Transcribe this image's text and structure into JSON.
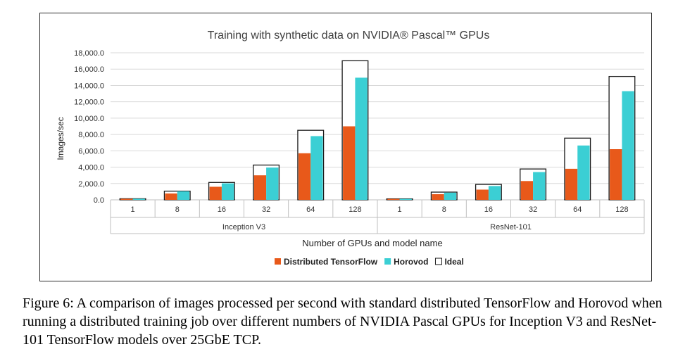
{
  "chart_data": {
    "type": "bar",
    "title": "Training with synthetic data on NVIDIA® Pascal™ GPUs",
    "xlabel": "Number of GPUs and model name",
    "ylabel": "Images/sec",
    "ylim": [
      0,
      18000
    ],
    "yticks": [
      "0.0",
      "2,000.0",
      "4,000.0",
      "6,000.0",
      "8,000.0",
      "10,000.0",
      "12,000.0",
      "14,000.0",
      "16,000.0",
      "18,000.0"
    ],
    "grid": true,
    "legend_position": "bottom",
    "groups": [
      {
        "name": "Inception V3",
        "categories": [
          "1",
          "8",
          "16",
          "32",
          "64",
          "128"
        ]
      },
      {
        "name": "ResNet-101",
        "categories": [
          "1",
          "8",
          "16",
          "32",
          "64",
          "128"
        ]
      }
    ],
    "series": [
      {
        "name": "Distributed TensorFlow",
        "color": "#e8591a",
        "values": [
          133,
          780,
          1600,
          3000,
          5700,
          9000,
          118,
          690,
          1250,
          2300,
          3800,
          6200
        ]
      },
      {
        "name": "Horovod",
        "color": "#3bcfd4",
        "values": [
          133,
          1050,
          2020,
          3950,
          7800,
          14950,
          118,
          880,
          1690,
          3400,
          6650,
          13300
        ]
      },
      {
        "name": "Ideal",
        "color": "#ffffff",
        "values": [
          133,
          1064,
          2128,
          4256,
          8512,
          17024,
          118,
          944,
          1888,
          3776,
          7552,
          15104
        ]
      }
    ]
  },
  "caption": "Figure 6: A comparison of images processed per second with standard distributed TensorFlow and Horovod when running a distributed training job over different numbers of NVIDIA Pascal GPUs for Inception V3 and ResNet-101 TensorFlow models over 25GbE TCP."
}
